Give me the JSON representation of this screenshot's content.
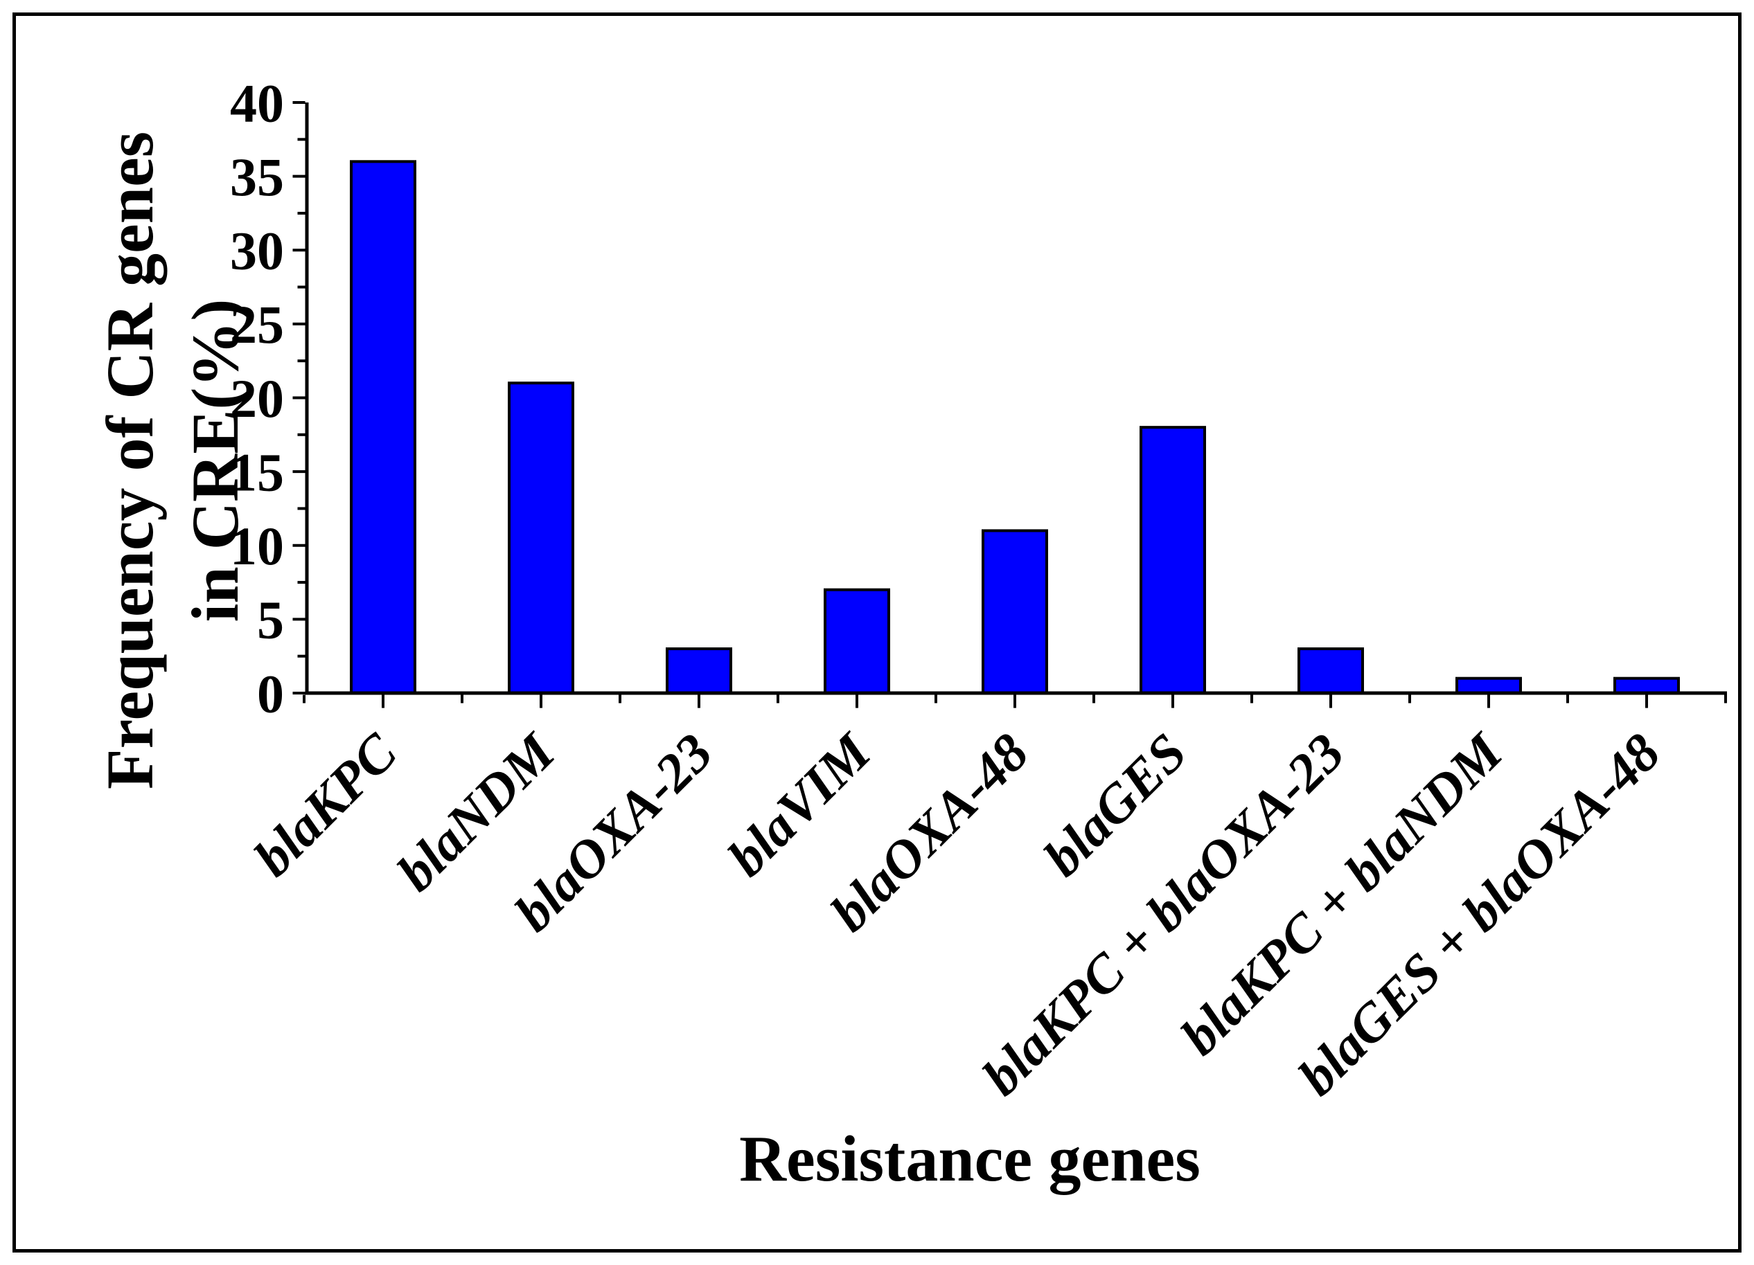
{
  "figure": {
    "background": "#ffffff",
    "border_color": "#000000"
  },
  "chart_data": {
    "type": "bar",
    "title": "",
    "xlabel": "Resistance genes",
    "ylabel": "Frequency of CR genes in CRE(%)",
    "ylabel_lines": [
      "Frequency of CR genes",
      "in CRE(%)"
    ],
    "categories": [
      "blaKPC",
      "blaNDM",
      "blaOXA-23",
      "blaVIM",
      "blaOXA-48",
      "blaGES",
      "blaKPC + blaOXA-23",
      "blaKPC + blaNDM",
      "blaGES + blaOXA-48"
    ],
    "values": [
      36,
      21,
      3,
      7,
      11,
      18,
      3,
      1,
      1
    ],
    "ylim": [
      0,
      40
    ],
    "y_major_step": 5,
    "y_minor_step": 2.5,
    "y_tick_labels": [
      "0",
      "5",
      "10",
      "15",
      "20",
      "25",
      "30",
      "35",
      "40"
    ],
    "x_tick_label_rotation_deg": -45,
    "x_tick_label_style": "bold-italic",
    "bar_color": "#0000ff",
    "bar_edge_color": "#000000",
    "axis_color": "#000000",
    "grid": false,
    "legend": null
  }
}
